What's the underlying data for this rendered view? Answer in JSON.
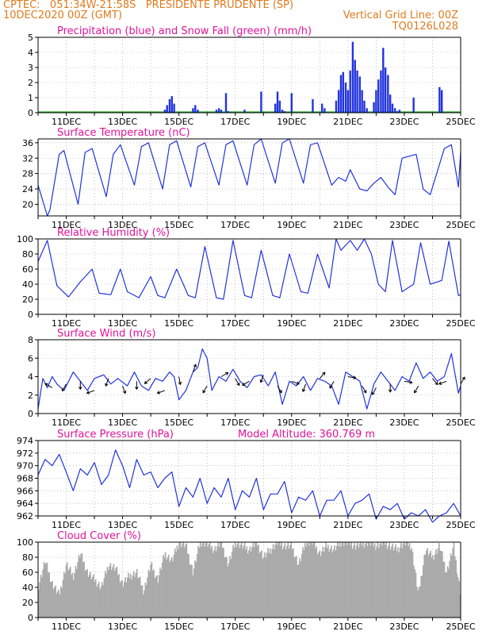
{
  "header": {
    "line1_left": "CPTEC:   051:34W-21:58S   PRESIDENTE PRUDENTE (SP)",
    "line2_left": "10DEC2020 00Z (GMT)",
    "line2_right": "Vertical Grid Line: 00Z",
    "line3_right": "TQ0126L028"
  },
  "colors": {
    "header": "#e07a1e",
    "title": "#e0139a",
    "line": "#2233dd",
    "precip": "#2233dd",
    "snow": "#22aa22",
    "cloud": "#aaaaaa",
    "grid": "#999999",
    "wind_arrow": "#000000"
  },
  "chart_data": [
    {
      "id": "precip",
      "type": "bar",
      "title": "Precipitation (blue) and Snow Fall (green) (mm/h)",
      "ylim": [
        0,
        5
      ],
      "yticks": [
        0,
        1,
        2,
        3,
        4,
        5
      ],
      "xlim": [
        10.0,
        25.0
      ],
      "xticks": [
        11,
        13,
        15,
        17,
        19,
        21,
        23,
        25
      ],
      "xticklabels": [
        "11DEC",
        "13DEC",
        "15DEC",
        "17DEC",
        "19DEC",
        "21DEC",
        "23DEC",
        "25DEC"
      ],
      "series": [
        {
          "name": "Precipitation",
          "color": "#2233dd",
          "x": [
            14.5,
            14.58,
            14.67,
            14.75,
            14.83,
            15.5,
            15.58,
            15.67,
            16.33,
            16.42,
            16.5,
            16.67,
            16.75,
            17.33,
            17.92,
            18.42,
            18.5,
            18.58,
            18.67,
            18.75,
            19.0,
            19.75,
            20.08,
            20.17,
            20.58,
            20.67,
            20.75,
            20.83,
            20.92,
            21.0,
            21.08,
            21.17,
            21.25,
            21.33,
            21.42,
            21.5,
            21.58,
            21.67,
            21.92,
            22.0,
            22.08,
            22.17,
            22.25,
            22.33,
            22.42,
            22.5,
            22.58,
            22.67,
            22.75,
            22.83,
            23.33,
            24.25,
            24.33
          ],
          "values": [
            0.2,
            0.5,
            0.9,
            1.1,
            0.6,
            0.3,
            0.5,
            0.2,
            0.2,
            0.3,
            0.2,
            1.3,
            0.1,
            0.2,
            1.4,
            0.6,
            1.4,
            0.8,
            0.2,
            0.1,
            1.3,
            0.9,
            0.6,
            0.3,
            0.8,
            1.5,
            2.5,
            2.7,
            2.0,
            1.5,
            2.8,
            4.7,
            3.5,
            2.8,
            2.4,
            1.5,
            0.8,
            0.3,
            0.7,
            1.5,
            2.2,
            2.8,
            4.3,
            3.0,
            2.5,
            1.2,
            0.6,
            0.3,
            0.1,
            0.2,
            1.0,
            1.7,
            1.5
          ]
        },
        {
          "name": "Snow Fall",
          "color": "#22aa22",
          "x": [
            10.0,
            25.0
          ],
          "values": [
            0,
            0
          ]
        }
      ]
    },
    {
      "id": "temperature",
      "type": "line",
      "title": "Surface Temperature (nC)",
      "ylim": [
        17,
        37
      ],
      "yticks": [
        20,
        24,
        28,
        32,
        36
      ],
      "xlim": [
        10.0,
        25.0
      ],
      "xticks": [
        11,
        13,
        15,
        17,
        19,
        21,
        23,
        25
      ],
      "xticklabels": [
        "11DEC",
        "13DEC",
        "15DEC",
        "17DEC",
        "19DEC",
        "21DEC",
        "23DEC",
        "25DEC"
      ],
      "series": [
        {
          "name": "Surface Temperature",
          "color": "#2233dd",
          "x": [
            10.0,
            10.33,
            10.42,
            10.75,
            10.92,
            11.42,
            11.67,
            11.92,
            12.42,
            12.67,
            12.92,
            13.42,
            13.67,
            13.92,
            14.42,
            14.67,
            14.92,
            15.42,
            15.67,
            15.92,
            16.42,
            16.67,
            16.92,
            17.42,
            17.67,
            17.92,
            18.42,
            18.67,
            18.92,
            19.42,
            19.67,
            19.92,
            20.42,
            20.67,
            20.92,
            21.08,
            21.42,
            21.67,
            21.92,
            22.17,
            22.42,
            22.67,
            22.92,
            23.42,
            23.67,
            23.92,
            24.42,
            24.67,
            24.92,
            25.0
          ],
          "values": [
            25.0,
            17.0,
            18.5,
            33.0,
            34.0,
            20.0,
            33.5,
            34.5,
            22.0,
            33.0,
            35.5,
            25.0,
            35.0,
            36.0,
            24.0,
            35.5,
            36.5,
            24.5,
            35.0,
            36.0,
            25.0,
            35.5,
            36.5,
            25.0,
            35.5,
            37.0,
            25.5,
            36.0,
            37.0,
            25.5,
            35.5,
            36.0,
            25.0,
            27.0,
            26.0,
            29.0,
            24.0,
            23.5,
            25.5,
            27.0,
            24.5,
            22.5,
            32.0,
            33.0,
            24.0,
            22.5,
            34.5,
            35.5,
            24.5,
            33.5
          ]
        }
      ]
    },
    {
      "id": "humidity",
      "type": "line",
      "title": "Relative Humidity (%)",
      "ylim": [
        0,
        100
      ],
      "yticks": [
        0,
        20,
        40,
        60,
        80,
        100
      ],
      "xlim": [
        10.0,
        25.0
      ],
      "xticks": [
        11,
        13,
        15,
        17,
        19,
        21,
        23,
        25
      ],
      "xticklabels": [
        "11DEC",
        "13DEC",
        "15DEC",
        "17DEC",
        "19DEC",
        "21DEC",
        "23DEC",
        "25DEC"
      ],
      "series": [
        {
          "name": "Relative Humidity",
          "color": "#2233dd",
          "x": [
            10.0,
            10.33,
            10.67,
            11.08,
            11.5,
            11.92,
            12.17,
            12.58,
            12.92,
            13.17,
            13.58,
            14.0,
            14.25,
            14.5,
            14.92,
            15.33,
            15.58,
            15.92,
            16.33,
            16.58,
            16.92,
            17.33,
            17.58,
            17.92,
            18.33,
            18.58,
            18.92,
            19.33,
            19.58,
            19.92,
            20.33,
            20.58,
            20.75,
            21.08,
            21.33,
            21.58,
            21.83,
            22.08,
            22.33,
            22.58,
            22.92,
            23.33,
            23.58,
            23.92,
            24.33,
            24.58,
            24.92,
            25.0
          ],
          "values": [
            70,
            98,
            38,
            23,
            43,
            60,
            28,
            26,
            60,
            30,
            22,
            50,
            25,
            22,
            60,
            25,
            22,
            90,
            22,
            20,
            98,
            25,
            22,
            85,
            25,
            22,
            80,
            30,
            28,
            80,
            35,
            100,
            85,
            98,
            85,
            100,
            80,
            40,
            30,
            98,
            30,
            40,
            95,
            40,
            45,
            97,
            25,
            26
          ]
        }
      ]
    },
    {
      "id": "wind",
      "type": "line",
      "title": "Surface Wind (m/s)",
      "ylim": [
        0,
        8
      ],
      "yticks": [
        0,
        2,
        4,
        6,
        8
      ],
      "xlim": [
        10.0,
        25.0
      ],
      "xticks": [
        11,
        13,
        15,
        17,
        19,
        21,
        23,
        25
      ],
      "xticklabels": [
        "11DEC",
        "13DEC",
        "15DEC",
        "17DEC",
        "19DEC",
        "21DEC",
        "23DEC",
        "25DEC"
      ],
      "series": [
        {
          "name": "Surface Wind",
          "color": "#2233dd",
          "x": [
            10.0,
            10.17,
            10.33,
            10.5,
            10.67,
            10.92,
            11.25,
            11.5,
            11.75,
            12.0,
            12.33,
            12.58,
            12.83,
            13.17,
            13.42,
            13.67,
            13.92,
            14.17,
            14.42,
            14.67,
            14.83,
            15.0,
            15.25,
            15.5,
            15.67,
            15.83,
            16.0,
            16.17,
            16.42,
            16.67,
            16.92,
            17.17,
            17.42,
            17.67,
            17.92,
            18.17,
            18.42,
            18.67,
            18.92,
            19.17,
            19.42,
            19.67,
            19.92,
            20.17,
            20.42,
            20.67,
            20.92,
            21.17,
            21.42,
            21.67,
            21.92,
            22.17,
            22.42,
            22.67,
            22.92,
            23.17,
            23.42,
            23.67,
            23.92,
            24.17,
            24.42,
            24.67,
            24.92,
            25.0
          ],
          "values": [
            0.5,
            3.8,
            2.8,
            4.0,
            3.2,
            2.5,
            4.5,
            3.5,
            2.5,
            3.8,
            4.2,
            3.2,
            3.8,
            3.0,
            4.5,
            3.0,
            2.5,
            3.8,
            3.5,
            4.5,
            4.0,
            1.5,
            2.5,
            4.5,
            5.0,
            7.0,
            6.0,
            2.5,
            4.0,
            3.5,
            4.8,
            3.5,
            2.8,
            4.0,
            4.2,
            3.0,
            4.5,
            1.0,
            3.5,
            3.0,
            4.0,
            2.5,
            3.8,
            3.5,
            3.0,
            1.0,
            4.5,
            4.0,
            3.5,
            0.5,
            3.2,
            4.5,
            3.5,
            2.5,
            4.0,
            3.5,
            5.5,
            3.8,
            4.5,
            3.5,
            4.0,
            6.5,
            2.2,
            3.0
          ]
        }
      ],
      "wind_arrows": {
        "x": [
          10.5,
          11.0,
          11.5,
          12.0,
          12.5,
          13.0,
          13.5,
          14.0,
          14.5,
          15.0,
          15.5,
          16.0,
          16.5,
          17.0,
          17.5,
          18.0,
          18.5,
          19.0,
          19.5,
          20.0,
          20.5,
          21.0,
          21.5,
          22.0,
          22.5,
          23.0,
          23.5,
          24.0,
          24.5,
          25.0
        ],
        "speed": [
          2.8,
          3.2,
          3.5,
          2.5,
          3.8,
          3.0,
          3.5,
          3.8,
          2.5,
          4.0,
          4.5,
          3.0,
          4.0,
          3.8,
          3.5,
          4.2,
          3.0,
          3.5,
          3.2,
          3.8,
          3.5,
          4.0,
          3.0,
          2.8,
          3.2,
          3.5,
          3.0,
          3.8,
          3.5,
          3.2
        ],
        "direction_deg": [
          300,
          210,
          180,
          250,
          200,
          160,
          180,
          230,
          250,
          170,
          20,
          210,
          60,
          150,
          240,
          200,
          150,
          110,
          200,
          40,
          210,
          100,
          150,
          210,
          180,
          100,
          210,
          140,
          250,
          30
        ]
      }
    },
    {
      "id": "pressure",
      "type": "line",
      "title": "Surface Pressure (hPa)",
      "annotation": "Model Altitude: 360.769 m",
      "ylim": [
        962,
        974
      ],
      "yticks": [
        962,
        964,
        966,
        968,
        970,
        972,
        974
      ],
      "xlim": [
        10.0,
        25.0
      ],
      "xticks": [
        11,
        13,
        15,
        17,
        19,
        21,
        23,
        25
      ],
      "xticklabels": [
        "11DEC",
        "13DEC",
        "15DEC",
        "17DEC",
        "19DEC",
        "21DEC",
        "23DEC",
        "25DEC"
      ],
      "series": [
        {
          "name": "Surface Pressure",
          "color": "#2233dd",
          "x": [
            10.0,
            10.25,
            10.5,
            10.75,
            11.0,
            11.25,
            11.5,
            11.75,
            12.0,
            12.25,
            12.5,
            12.75,
            13.0,
            13.25,
            13.5,
            13.75,
            14.0,
            14.25,
            14.5,
            14.75,
            15.0,
            15.25,
            15.5,
            15.75,
            16.0,
            16.25,
            16.5,
            16.75,
            17.0,
            17.25,
            17.5,
            17.75,
            18.0,
            18.25,
            18.5,
            18.75,
            19.0,
            19.25,
            19.5,
            19.75,
            20.0,
            20.25,
            20.5,
            20.75,
            21.0,
            21.25,
            21.5,
            21.75,
            22.0,
            22.25,
            22.5,
            22.75,
            23.0,
            23.25,
            23.5,
            23.75,
            24.0,
            24.25,
            24.5,
            24.75,
            25.0
          ],
          "values": [
            968.5,
            971.0,
            970.0,
            971.8,
            969.0,
            966.0,
            969.5,
            968.5,
            970.5,
            967.0,
            968.5,
            972.5,
            970.0,
            966.5,
            971.0,
            968.5,
            969.0,
            966.5,
            968.0,
            969.0,
            963.5,
            966.5,
            965.0,
            968.0,
            964.0,
            966.5,
            965.0,
            968.0,
            963.0,
            966.0,
            965.0,
            968.0,
            963.0,
            965.5,
            965.5,
            967.5,
            962.5,
            965.0,
            964.5,
            966.0,
            962.0,
            964.5,
            964.5,
            966.0,
            962.0,
            964.0,
            964.5,
            965.5,
            961.5,
            963.5,
            963.0,
            964.0,
            961.5,
            962.5,
            962.0,
            963.0,
            961.0,
            962.0,
            962.5,
            964.0,
            962.0
          ]
        }
      ]
    },
    {
      "id": "cloud",
      "type": "area",
      "title": "Cloud Cover (%)",
      "ylim": [
        0,
        100
      ],
      "yticks": [
        0,
        20,
        40,
        60,
        80,
        100
      ],
      "xlim": [
        10.0,
        25.0
      ],
      "xticks": [
        11,
        13,
        15,
        17,
        19,
        21,
        23,
        25
      ],
      "xticklabels": [
        "11DEC",
        "13DEC",
        "15DEC",
        "17DEC",
        "19DEC",
        "21DEC",
        "23DEC",
        "25DEC"
      ],
      "series": [
        {
          "name": "Cloud Cover",
          "color": "#aaaaaa",
          "x": [
            10.0,
            10.25,
            10.5,
            10.75,
            11.0,
            11.25,
            11.5,
            11.75,
            12.0,
            12.25,
            12.5,
            12.75,
            13.0,
            13.25,
            13.5,
            13.75,
            14.0,
            14.25,
            14.5,
            14.75,
            15.0,
            15.25,
            15.5,
            15.75,
            16.0,
            16.25,
            16.5,
            16.75,
            17.0,
            17.25,
            17.5,
            17.75,
            18.0,
            18.25,
            18.5,
            18.75,
            19.0,
            19.25,
            19.5,
            19.75,
            20.0,
            20.25,
            20.5,
            20.75,
            21.0,
            21.25,
            21.5,
            21.75,
            22.0,
            22.25,
            22.5,
            22.75,
            23.0,
            23.25,
            23.5,
            23.75,
            24.0,
            24.25,
            24.5,
            24.75,
            25.0
          ],
          "values": [
            40,
            75,
            45,
            30,
            70,
            55,
            85,
            60,
            50,
            40,
            70,
            65,
            45,
            55,
            60,
            35,
            70,
            50,
            85,
            75,
            100,
            95,
            60,
            100,
            98,
            90,
            100,
            70,
            100,
            95,
            90,
            100,
            80,
            90,
            100,
            95,
            95,
            70,
            100,
            100,
            85,
            95,
            90,
            100,
            100,
            95,
            98,
            100,
            95,
            100,
            95,
            90,
            100,
            95,
            30,
            90,
            80,
            95,
            60,
            95,
            30
          ]
        }
      ]
    }
  ]
}
